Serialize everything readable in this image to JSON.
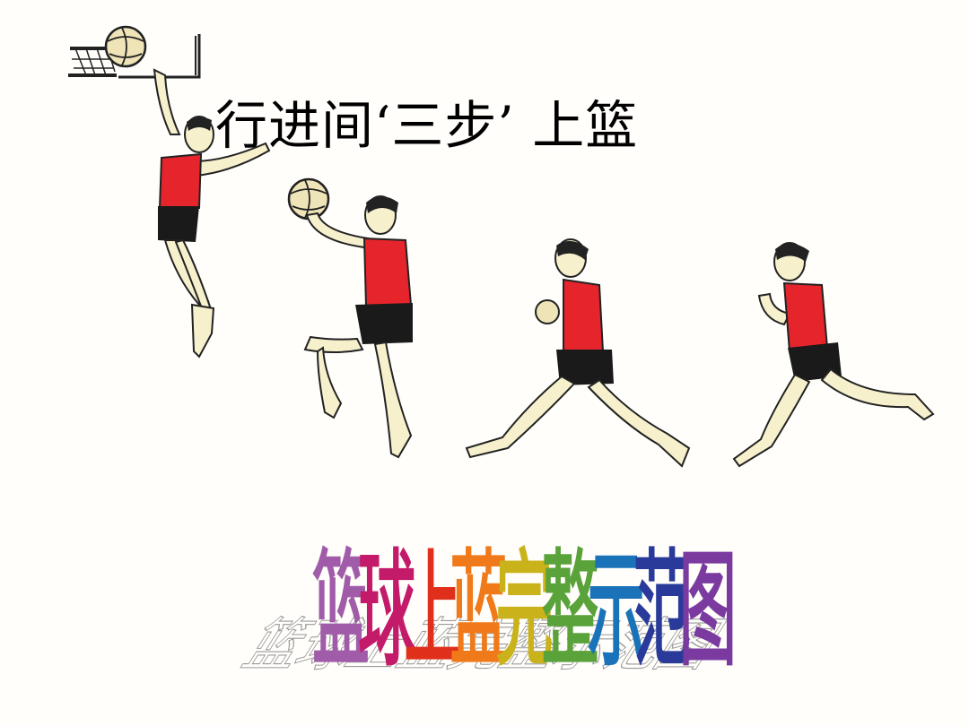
{
  "slide": {
    "title": "行进间‘三步’ 上篮",
    "wordart": {
      "text": "篮球上蓝完整示范图",
      "colors": [
        "#a05ca8",
        "#c41a6a",
        "#e0301c",
        "#f07a1a",
        "#c9b21a",
        "#5aa23a",
        "#1a72b8",
        "#2a3a9a",
        "#7a3aa0"
      ]
    },
    "illustration": {
      "icon": "basketball-layup-sequence-illustration",
      "colors": {
        "jersey": "#e6242c",
        "shorts": "#1a1a1a",
        "skin": "#f6f0cc",
        "ball": "#efe3b8"
      }
    }
  }
}
